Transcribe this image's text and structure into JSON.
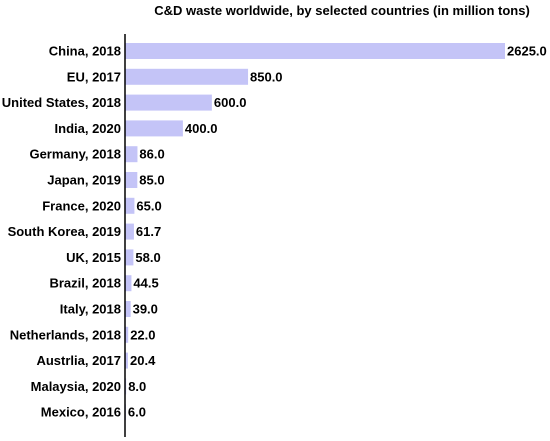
{
  "chart_data": {
    "type": "bar",
    "orientation": "horizontal",
    "title": "C&D waste worldwide, by selected countries (in million tons)",
    "xlabel": "",
    "ylabel": "",
    "categories": [
      "China, 2018",
      "EU, 2017",
      "United States, 2018",
      "India, 2020",
      "Germany, 2018",
      "Japan, 2019",
      "France, 2020",
      "South Korea, 2019",
      "UK, 2015",
      "Brazil, 2018",
      "Italy, 2018",
      "Netherlands, 2018",
      "Austrlia, 2017",
      "Malaysia, 2020",
      "Mexico, 2016"
    ],
    "values": [
      2625.0,
      850.0,
      600.0,
      400.0,
      86.0,
      85.0,
      65.0,
      61.7,
      58.0,
      44.5,
      39.0,
      22.0,
      20.4,
      8.0,
      6.0
    ],
    "value_labels": [
      "2625.0",
      "850.0",
      "600.0",
      "400.0",
      "86.0",
      "85.0",
      "65.0",
      "61.7",
      "58.0",
      "44.5",
      "39.0",
      "22.0",
      "20.4",
      "8.0",
      "6.0"
    ],
    "xlim": [
      0,
      2625
    ],
    "grid": false,
    "bar_color": "#c4c4f7",
    "axis_color": "#000000"
  }
}
